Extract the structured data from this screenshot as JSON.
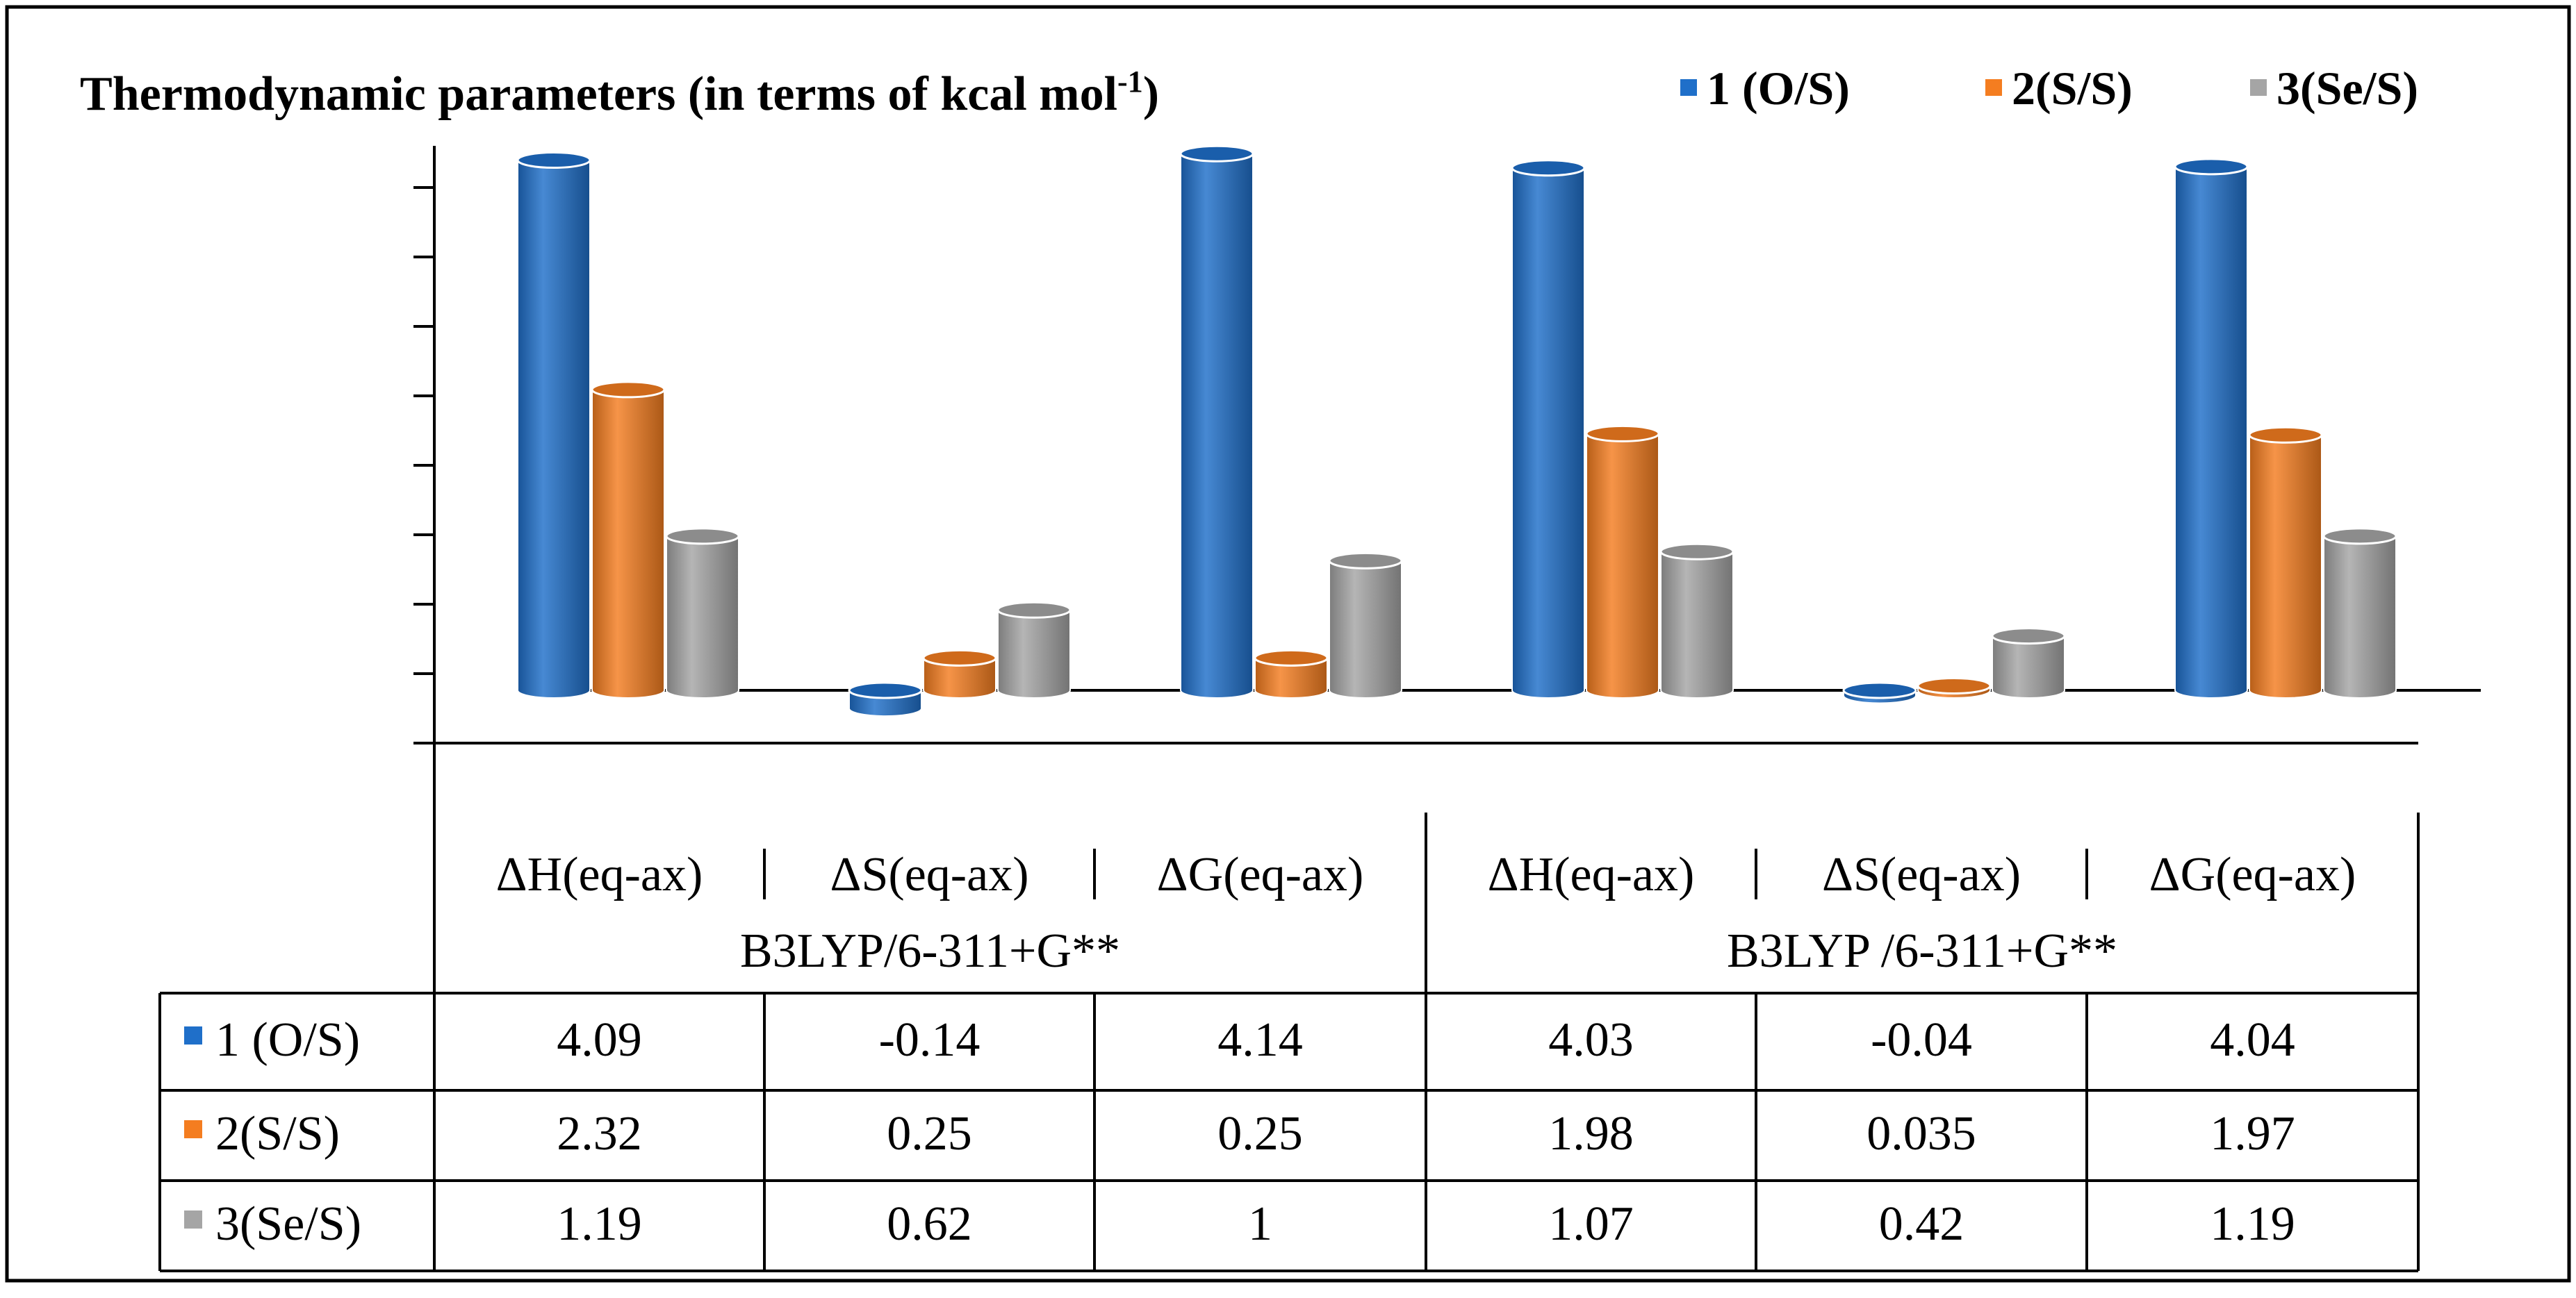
{
  "chart_data": {
    "type": "bar",
    "title": "Thermodynamic parameters (in terms of kcal mol",
    "title_superscript": "-1",
    "title_close": ")",
    "categories": [
      "ΔH(eq-ax)",
      "ΔS(eq-ax)",
      "ΔG(eq-ax)",
      "ΔH(eq-ax)",
      "ΔS(eq-ax)",
      "ΔG(eq-ax)"
    ],
    "groups": [
      {
        "label": "B3LYP/6-311+G**",
        "span": [
          0,
          2
        ]
      },
      {
        "label": "B3LYP /6-311+G**",
        "span": [
          3,
          5
        ]
      }
    ],
    "series": [
      {
        "name": "1 (O/S)",
        "color": "#1f6fc9",
        "values": [
          "4.09",
          "-0.14",
          "4.14",
          "4.03",
          "-0.04",
          "4.04"
        ]
      },
      {
        "name": "2(S/S)",
        "color": "#f47d20",
        "values": [
          "2.32",
          "0.25",
          "0.25",
          "1.98",
          "0.035",
          "1.97"
        ]
      },
      {
        "name": "3(Se/S)",
        "color": "#a5a5a5",
        "values": [
          "1.19",
          "0.62",
          "1",
          "1.07",
          "0.42",
          "1.19"
        ]
      }
    ],
    "ylim": [
      -0.3,
      4.2
    ],
    "ylabel": "",
    "xlabel": "",
    "legend_position": "top-right",
    "data_table": true
  }
}
